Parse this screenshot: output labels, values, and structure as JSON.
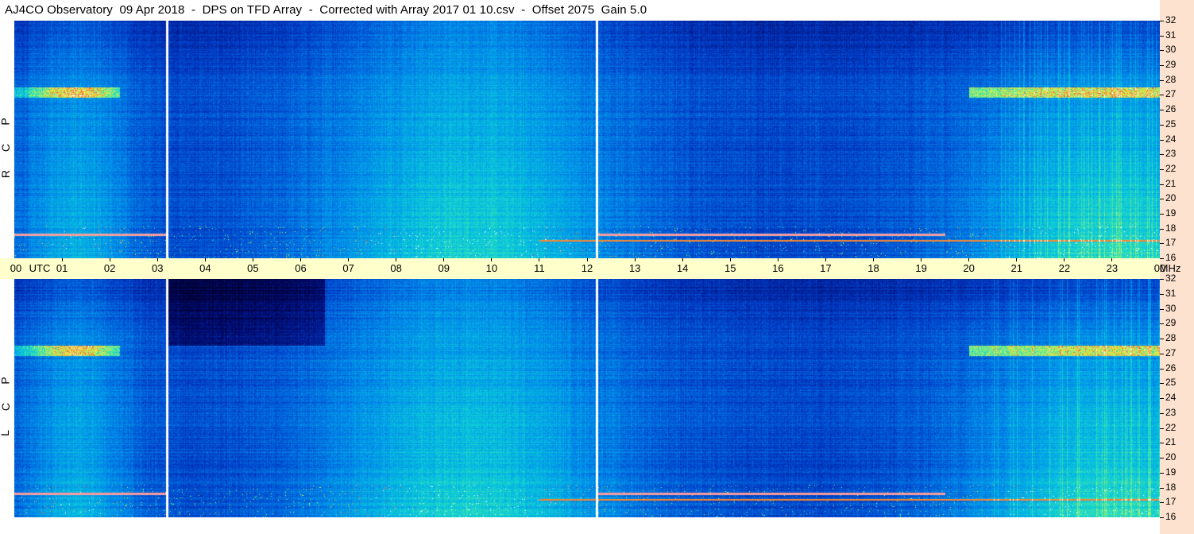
{
  "title": "AJ4CO Observatory  09 Apr 2018  -  DPS on TFD Array  -  Corrected with Array 2017 01 10.csv  -  Offset 2075  Gain 5.0",
  "colors": {
    "axis_bg": "#ffffcc",
    "freq_strip_bg": "#fde2cf"
  },
  "chart_data": [
    {
      "type": "heatmap",
      "panel": "RCP",
      "ylabel": "R C P",
      "x_unit": "UTC",
      "y_unit": "MHz",
      "xlim": [
        0,
        24
      ],
      "ylim": [
        16,
        32
      ],
      "x_ticks": [
        "00",
        "UTC",
        "01",
        "02",
        "03",
        "04",
        "05",
        "06",
        "07",
        "08",
        "09",
        "10",
        "11",
        "12",
        "13",
        "14",
        "15",
        "16",
        "17",
        "18",
        "19",
        "20",
        "21",
        "22",
        "23",
        "00",
        "MHz"
      ],
      "y_ticks": [
        "32",
        "31",
        "30",
        "29",
        "28",
        "27",
        "26",
        "25",
        "24",
        "23",
        "22",
        "21",
        "20",
        "19",
        "18",
        "17",
        "16"
      ],
      "data_gaps_utc": [
        3.2,
        12.2
      ],
      "bands_mhz": [
        17.2,
        17.6,
        17.9,
        27.2
      ]
    },
    {
      "type": "heatmap",
      "panel": "LCP",
      "ylabel": "L C P",
      "x_unit": "UTC",
      "y_unit": "MHz",
      "xlim": [
        0,
        24
      ],
      "ylim": [
        16,
        32
      ],
      "y_ticks": [
        "32",
        "31",
        "30",
        "29",
        "28",
        "27",
        "26",
        "25",
        "24",
        "23",
        "22",
        "21",
        "20",
        "19",
        "18",
        "17",
        "16"
      ],
      "data_gaps_utc": [
        3.2,
        12.2
      ],
      "bands_mhz": [
        17.2,
        17.6,
        17.9,
        27.2
      ]
    }
  ]
}
